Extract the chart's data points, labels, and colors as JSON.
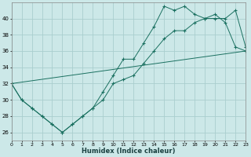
{
  "xlabel": "Humidex (Indice chaleur)",
  "xlim": [
    0,
    23
  ],
  "ylim": [
    25,
    42
  ],
  "yticks": [
    26,
    28,
    30,
    32,
    34,
    36,
    38,
    40
  ],
  "xticks": [
    0,
    1,
    2,
    3,
    4,
    5,
    6,
    7,
    8,
    9,
    10,
    11,
    12,
    13,
    14,
    15,
    16,
    17,
    18,
    19,
    20,
    21,
    22,
    23
  ],
  "bg_color": "#cce8e8",
  "grid_color": "#aacece",
  "line_color": "#1a7060",
  "line1_x": [
    0,
    1,
    2,
    3,
    4,
    5,
    6,
    7,
    8,
    9,
    10,
    11,
    12,
    13,
    14,
    15,
    16,
    17,
    18,
    19,
    20,
    21,
    22,
    23
  ],
  "line1_y": [
    32,
    30,
    29,
    28,
    27,
    26,
    27,
    28,
    29,
    31,
    33,
    35,
    35,
    37,
    39,
    41.5,
    41,
    41.5,
    40.5,
    40,
    40,
    40,
    41,
    36.5
  ],
  "line2_x": [
    0,
    1,
    2,
    3,
    4,
    5,
    6,
    7,
    8,
    9,
    10,
    11,
    12,
    13,
    14,
    15,
    16,
    17,
    18,
    19,
    20,
    21,
    22,
    23
  ],
  "line2_y": [
    32,
    30,
    29,
    28,
    27,
    26,
    27,
    28,
    29,
    30,
    32,
    32.5,
    33,
    34.5,
    36,
    37.5,
    38.5,
    38.5,
    39.5,
    40,
    40.5,
    39.5,
    36.5,
    36
  ],
  "line3_x": [
    0,
    23
  ],
  "line3_y": [
    32,
    36
  ]
}
